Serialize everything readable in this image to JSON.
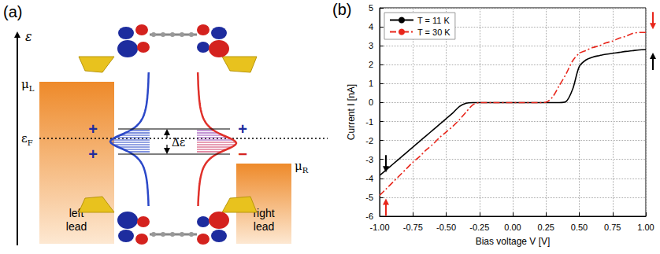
{
  "diagram": {
    "letter": "(a)",
    "energy_axis": "ε",
    "mu_left": {
      "symbol": "μ",
      "subscript": "L"
    },
    "fermi": {
      "symbol": "ε",
      "subscript": "F"
    },
    "mu_right": {
      "symbol": "μ",
      "subscript": "R"
    },
    "left_lead": "left lead",
    "right_lead": "right lead",
    "splitting": "Δε",
    "signs_left": [
      "+",
      "+"
    ],
    "signs_right": [
      "+",
      "−"
    ]
  },
  "chart_data": {
    "type": "line",
    "panel_letter": "(b)",
    "x_label": "Bias voltage V [V]",
    "y_label": "Current I [nA]",
    "x": [
      -1,
      -0.95,
      -0.9,
      -0.85,
      -0.8,
      -0.75,
      -0.7,
      -0.65,
      -0.6,
      -0.55,
      -0.5,
      -0.45,
      -0.4,
      -0.35,
      -0.3,
      -0.25,
      -0.2,
      -0.15,
      -0.1,
      -0.05,
      0,
      0.05,
      0.1,
      0.15,
      0.2,
      0.25,
      0.3,
      0.35,
      0.4,
      0.45,
      0.5,
      0.55,
      0.6,
      0.65,
      0.7,
      0.75,
      0.8,
      0.85,
      0.9,
      0.95,
      1
    ],
    "series": [
      {
        "name": "T = 11 K",
        "color": "#000000",
        "line_style": "solid",
        "values": [
          -3.85,
          -3.55,
          -3.25,
          -2.95,
          -2.65,
          -2.35,
          -2.05,
          -1.75,
          -1.45,
          -1.15,
          -0.85,
          -0.55,
          -0.2,
          -0.03,
          0,
          0,
          0,
          0,
          0,
          0,
          0,
          0,
          0,
          0,
          0,
          0,
          0,
          0,
          0.05,
          0.7,
          1.9,
          2.25,
          2.4,
          2.48,
          2.55,
          2.6,
          2.65,
          2.7,
          2.74,
          2.78,
          2.8
        ]
      },
      {
        "name": "T = 30 K",
        "color": "#e8261b",
        "line_style": "dashdot",
        "values": [
          -4.9,
          -4.55,
          -4.2,
          -3.85,
          -3.5,
          -3.15,
          -2.85,
          -2.5,
          -2.2,
          -1.85,
          -1.55,
          -1.25,
          -0.9,
          -0.5,
          -0.12,
          0,
          0,
          0,
          0,
          0,
          0,
          0,
          0,
          0,
          0,
          0.02,
          0.3,
          0.9,
          1.5,
          2.2,
          2.6,
          2.75,
          2.9,
          3.0,
          3.15,
          3.25,
          3.4,
          3.5,
          3.65,
          3.7,
          3.7
        ]
      }
    ],
    "xlim": [
      -1,
      1
    ],
    "xticks": [
      {
        "value": -1,
        "label": "-1.00"
      },
      -0.75,
      {
        "value": -0.5,
        "label": "-0.50"
      },
      -0.25,
      {
        "value": 0,
        "label": "0.00"
      },
      0.25,
      {
        "value": 0.5,
        "label": "0.50"
      },
      0.75,
      {
        "value": 1,
        "label": "1.00"
      }
    ],
    "ylim": [
      -6,
      5
    ],
    "yticks": [
      -6,
      -5,
      -4,
      -3,
      -2,
      -1,
      0,
      1,
      2,
      3,
      4,
      5
    ],
    "grid": true,
    "legend": "upper left"
  }
}
